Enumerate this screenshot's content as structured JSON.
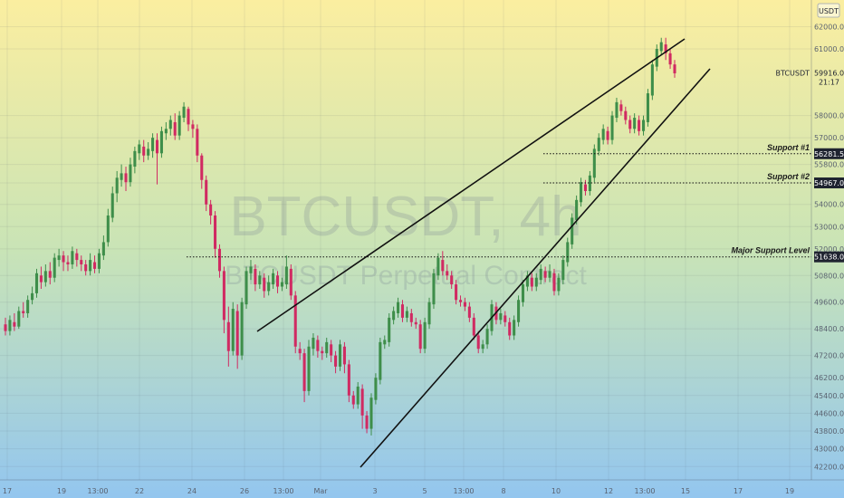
{
  "chart_data": {
    "type": "candlestick",
    "watermark": {
      "title": "BTCUSDT, 4h",
      "subtitle": "BTCUSDT Perpetual Contract"
    },
    "symbol": "BTCUSDT",
    "currency": "USDT",
    "last_price": "59916.0",
    "countdown": "21:17",
    "y_ticks": [
      "62000.0",
      "61000.0",
      "58000.0",
      "57000.0",
      "55800.0",
      "54967.0",
      "54000.0",
      "53000.0",
      "52000.0",
      "50800.0",
      "49600.0",
      "48400.0",
      "47200.0",
      "46200.0",
      "45400.0",
      "44600.0",
      "43800.0",
      "43000.0",
      "42200.0"
    ],
    "x_ticks": [
      "17",
      "19",
      "13:00",
      "22",
      "24",
      "26",
      "13:00",
      "Mar",
      "3",
      "5",
      "13:00",
      "8",
      "10",
      "12",
      "13:00",
      "15",
      "17",
      "19"
    ],
    "levels": [
      {
        "name": "Support #1",
        "value": 56281.5,
        "label": "56281.5"
      },
      {
        "name": "Support #2",
        "value": 54967.0,
        "label": "54967.0"
      },
      {
        "name": "Major Support Level",
        "value": 51638.0,
        "label": "51638.0"
      }
    ],
    "candles": [
      [
        48600,
        48300,
        48900,
        48100
      ],
      [
        48300,
        48800,
        49000,
        48100
      ],
      [
        48700,
        48500,
        49100,
        48300
      ],
      [
        48500,
        49200,
        49400,
        48400
      ],
      [
        49200,
        49100,
        49600,
        48900
      ],
      [
        49100,
        49700,
        49900,
        48900
      ],
      [
        49700,
        50000,
        50300,
        49500
      ],
      [
        50000,
        50900,
        51100,
        49800
      ],
      [
        50800,
        50500,
        51200,
        50200
      ],
      [
        50500,
        51000,
        51300,
        50300
      ],
      [
        51000,
        50700,
        51400,
        50400
      ],
      [
        50700,
        51600,
        51800,
        50500
      ],
      [
        51500,
        51700,
        52000,
        51200
      ],
      [
        51700,
        51400,
        51900,
        51000
      ],
      [
        51400,
        51300,
        51700,
        51000
      ],
      [
        51300,
        51900,
        52100,
        51100
      ],
      [
        51800,
        51500,
        52000,
        51200
      ],
      [
        51500,
        51300,
        51700,
        51000
      ],
      [
        51300,
        51000,
        51500,
        50800
      ],
      [
        51000,
        51500,
        51800,
        50800
      ],
      [
        51400,
        51100,
        51700,
        50900
      ],
      [
        51100,
        51800,
        52000,
        50900
      ],
      [
        51700,
        52300,
        52600,
        51500
      ],
      [
        52300,
        53500,
        53800,
        52100
      ],
      [
        53400,
        54500,
        54800,
        53200
      ],
      [
        54500,
        55200,
        55500,
        54100
      ],
      [
        55100,
        55400,
        55800,
        54800
      ],
      [
        55400,
        55000,
        55700,
        54600
      ],
      [
        55000,
        55800,
        56100,
        54800
      ],
      [
        55700,
        56400,
        56600,
        55400
      ],
      [
        56300,
        56700,
        56900,
        56000
      ],
      [
        56600,
        56200,
        56900,
        55900
      ],
      [
        56200,
        56500,
        56800,
        56000
      ],
      [
        56400,
        57000,
        57200,
        56100
      ],
      [
        56900,
        56300,
        57200,
        54900
      ],
      [
        56300,
        57300,
        57500,
        56100
      ],
      [
        57200,
        57400,
        57700,
        56900
      ],
      [
        57400,
        57800,
        58000,
        57100
      ],
      [
        57700,
        57100,
        58100,
        56900
      ],
      [
        57100,
        58000,
        58200,
        56900
      ],
      [
        57900,
        58400,
        58600,
        57700
      ],
      [
        58300,
        57600,
        58400,
        57300
      ],
      [
        57600,
        57400,
        57800,
        57000
      ],
      [
        57400,
        56200,
        57600,
        55900
      ],
      [
        56200,
        55100,
        56300,
        54700
      ],
      [
        55100,
        54000,
        55300,
        53700
      ],
      [
        54000,
        53500,
        54200,
        53100
      ],
      [
        53500,
        52000,
        53700,
        51600
      ],
      [
        52000,
        51000,
        52200,
        50700
      ],
      [
        51000,
        48800,
        51200,
        48200
      ],
      [
        48700,
        47400,
        49400,
        46700
      ],
      [
        47400,
        49300,
        49600,
        47200
      ],
      [
        49200,
        47200,
        49500,
        46600
      ],
      [
        47200,
        49600,
        49800,
        47000
      ],
      [
        49500,
        51000,
        51200,
        49300
      ],
      [
        50900,
        51200,
        51500,
        50600
      ],
      [
        51100,
        50400,
        51300,
        50100
      ],
      [
        50400,
        50800,
        51000,
        50200
      ],
      [
        50700,
        50100,
        50900,
        49800
      ],
      [
        50100,
        50500,
        50800,
        49900
      ],
      [
        50400,
        50900,
        51100,
        50200
      ],
      [
        50800,
        50300,
        51000,
        50000
      ],
      [
        50300,
        50500,
        50700,
        50100
      ],
      [
        50400,
        51200,
        51700,
        50200
      ],
      [
        51100,
        49900,
        51300,
        49700
      ],
      [
        49900,
        47600,
        50100,
        47300
      ],
      [
        47500,
        47300,
        47800,
        47000
      ],
      [
        47300,
        45600,
        47500,
        45100
      ],
      [
        45600,
        47600,
        47900,
        45400
      ],
      [
        47500,
        48000,
        48200,
        47200
      ],
      [
        47900,
        47400,
        48100,
        47100
      ],
      [
        47400,
        47300,
        47600,
        47000
      ],
      [
        47300,
        47800,
        48000,
        47100
      ],
      [
        47700,
        47200,
        47900,
        46900
      ],
      [
        47200,
        46700,
        47400,
        46400
      ],
      [
        46700,
        47700,
        47900,
        46500
      ],
      [
        47600,
        46800,
        47800,
        46400
      ],
      [
        46800,
        45400,
        47000,
        45100
      ],
      [
        45400,
        45000,
        45600,
        44800
      ],
      [
        45000,
        45800,
        46000,
        44800
      ],
      [
        45700,
        44500,
        45900,
        43900
      ],
      [
        44500,
        43900,
        44700,
        43700
      ],
      [
        43900,
        45300,
        45500,
        43600
      ],
      [
        45200,
        46200,
        46400,
        45000
      ],
      [
        46100,
        47800,
        48000,
        45900
      ],
      [
        47700,
        47900,
        48100,
        47500
      ],
      [
        47800,
        48900,
        49100,
        47600
      ],
      [
        48800,
        49200,
        49400,
        48600
      ],
      [
        49100,
        49600,
        49800,
        48900
      ],
      [
        49500,
        48900,
        49700,
        48700
      ],
      [
        48900,
        49200,
        49400,
        48700
      ],
      [
        49100,
        48700,
        49300,
        48500
      ],
      [
        48700,
        48600,
        48900,
        48400
      ],
      [
        48600,
        47500,
        48800,
        47300
      ],
      [
        47500,
        48700,
        48900,
        47300
      ],
      [
        48600,
        49600,
        49800,
        48400
      ],
      [
        49500,
        50900,
        51100,
        49300
      ],
      [
        50800,
        51600,
        51800,
        50600
      ],
      [
        51500,
        51000,
        51900,
        50800
      ],
      [
        51000,
        50800,
        51300,
        50600
      ],
      [
        50800,
        50400,
        51000,
        50200
      ],
      [
        50400,
        49700,
        50600,
        49500
      ],
      [
        49700,
        49600,
        49900,
        49400
      ],
      [
        49600,
        49400,
        49800,
        49200
      ],
      [
        49400,
        48900,
        49600,
        48700
      ],
      [
        48900,
        48100,
        49100,
        47900
      ],
      [
        48100,
        47500,
        48300,
        47300
      ],
      [
        47500,
        47700,
        47900,
        47300
      ],
      [
        47700,
        48400,
        48600,
        47500
      ],
      [
        48300,
        49500,
        49700,
        48100
      ],
      [
        49400,
        48800,
        49600,
        48600
      ],
      [
        48800,
        49100,
        49300,
        48600
      ],
      [
        49000,
        48700,
        49200,
        48500
      ],
      [
        48700,
        48100,
        48900,
        47900
      ],
      [
        48100,
        48800,
        49000,
        47900
      ],
      [
        48700,
        49700,
        49900,
        48500
      ],
      [
        49600,
        50400,
        50600,
        49400
      ],
      [
        50300,
        50800,
        51000,
        50100
      ],
      [
        50700,
        50300,
        50900,
        50100
      ],
      [
        50300,
        50700,
        50900,
        50100
      ],
      [
        50600,
        51100,
        51300,
        50400
      ],
      [
        51000,
        50700,
        51200,
        50500
      ],
      [
        50700,
        51000,
        51300,
        50500
      ],
      [
        50900,
        50100,
        51100,
        49900
      ],
      [
        50100,
        50700,
        50900,
        49900
      ],
      [
        50600,
        51500,
        51700,
        50400
      ],
      [
        51400,
        52300,
        52500,
        51200
      ],
      [
        52200,
        53400,
        53600,
        52000
      ],
      [
        53300,
        54200,
        54400,
        53100
      ],
      [
        54100,
        55000,
        55200,
        53900
      ],
      [
        54900,
        54600,
        55100,
        54400
      ],
      [
        54600,
        55300,
        55500,
        54400
      ],
      [
        55200,
        56500,
        56700,
        55000
      ],
      [
        56400,
        57000,
        57200,
        56200
      ],
      [
        56900,
        57400,
        57600,
        56700
      ],
      [
        57300,
        56900,
        57500,
        56700
      ],
      [
        56900,
        58000,
        58200,
        56700
      ],
      [
        57900,
        58600,
        58800,
        57700
      ],
      [
        58500,
        58200,
        58700,
        58000
      ],
      [
        58200,
        57800,
        58400,
        57600
      ],
      [
        57800,
        57400,
        58000,
        57200
      ],
      [
        57400,
        57900,
        58100,
        57200
      ],
      [
        57800,
        57300,
        58000,
        57100
      ],
      [
        57300,
        57800,
        58000,
        57100
      ],
      [
        57700,
        59000,
        59200,
        57500
      ],
      [
        58900,
        60300,
        60500,
        58700
      ],
      [
        60200,
        61000,
        61200,
        60000
      ],
      [
        60900,
        61300,
        61500,
        60700
      ],
      [
        61200,
        60800,
        61500,
        60500
      ],
      [
        60800,
        60300,
        61000,
        60100
      ],
      [
        60300,
        59900,
        60500,
        59700
      ]
    ]
  }
}
